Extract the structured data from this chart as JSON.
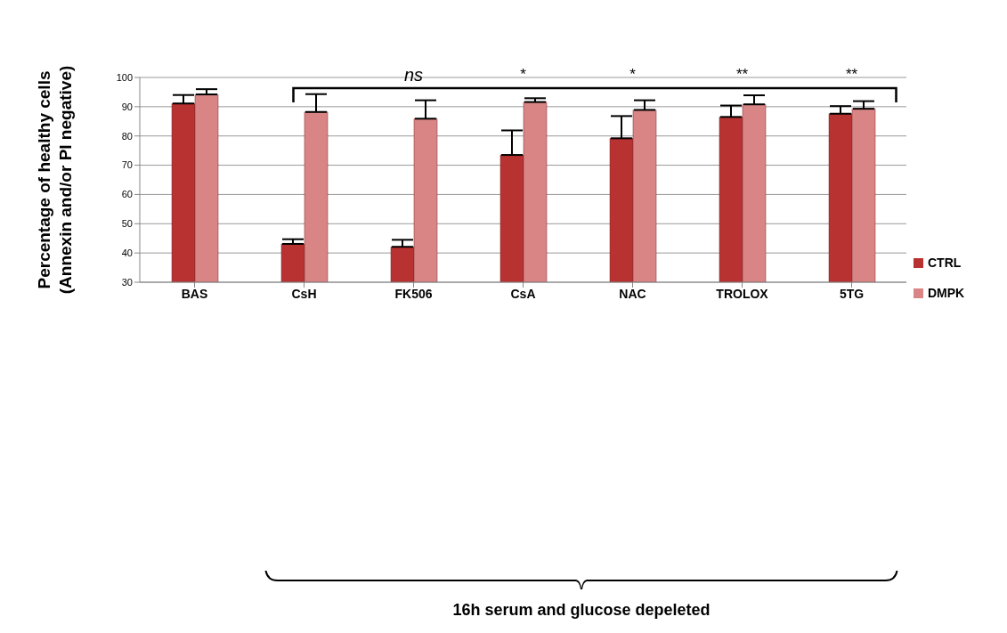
{
  "chart_data": {
    "type": "bar",
    "ylabel": "Percentage of healthy cells\n(Annexin and/or PI negative)",
    "categories": [
      "BAS",
      "CsH",
      "FK506",
      "CsA",
      "NAC",
      "TROLOX",
      "5TG"
    ],
    "series": [
      {
        "name": "CTRL",
        "color": "#b83232",
        "values": [
          91.1,
          43.1,
          42.1,
          73.5,
          79.2,
          86.5,
          87.6
        ],
        "errors": [
          [
            91.1,
            94.0
          ],
          [
            43.1,
            44.7
          ],
          [
            42.1,
            44.5
          ],
          [
            73.5,
            81.9
          ],
          [
            79.2,
            86.8
          ],
          [
            86.5,
            90.4
          ],
          [
            87.6,
            90.2
          ]
        ]
      },
      {
        "name": "DMPK",
        "color": "#d98585",
        "values": [
          94.2,
          88.2,
          85.9,
          91.6,
          88.9,
          90.8,
          89.3
        ],
        "errors": [
          [
            94.2,
            96.0
          ],
          [
            88.2,
            94.3
          ],
          [
            85.9,
            92.2
          ],
          [
            91.6,
            92.9
          ],
          [
            88.9,
            92.2
          ],
          [
            90.8,
            93.9
          ],
          [
            89.3,
            91.9
          ]
        ]
      }
    ],
    "ylim": [
      30,
      100
    ],
    "yticks": [
      30,
      40,
      50,
      60,
      70,
      80,
      90,
      100
    ],
    "grid": "y",
    "legend": "right",
    "annotations": [
      "ns",
      "*",
      "*",
      "**",
      "**",
      "16h serum and glucose depeleted"
    ]
  }
}
